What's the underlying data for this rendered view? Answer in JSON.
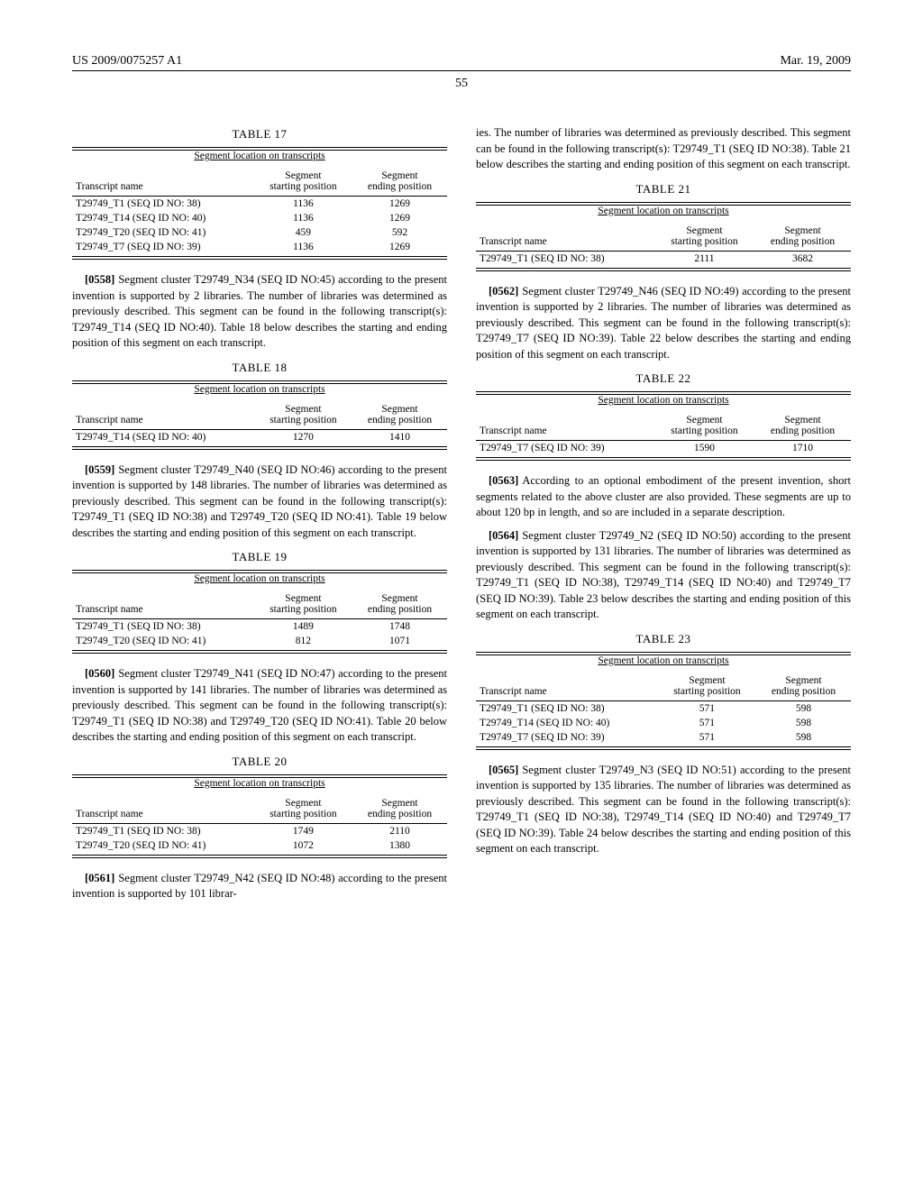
{
  "header": {
    "docnum": "US 2009/0075257 A1",
    "date": "Mar. 19, 2009"
  },
  "page_number": "55",
  "left": {
    "table17": {
      "title": "TABLE 17",
      "subtitle": "Segment location on transcripts",
      "col1": "Transcript name",
      "col2a": "Segment",
      "col2b": "starting position",
      "col3a": "Segment",
      "col3b": "ending position",
      "rows": [
        {
          "name": "T29749_T1 (SEQ ID NO: 38)",
          "start": "1136",
          "end": "1269"
        },
        {
          "name": "T29749_T14 (SEQ ID NO: 40)",
          "start": "1136",
          "end": "1269"
        },
        {
          "name": "T29749_T20 (SEQ ID NO: 41)",
          "start": "459",
          "end": "592"
        },
        {
          "name": "T29749_T7 (SEQ ID NO: 39)",
          "start": "1136",
          "end": "1269"
        }
      ]
    },
    "p0558": {
      "num": "[0558]",
      "text": "Segment cluster T29749_N34 (SEQ ID NO:45) according to the present invention is supported by 2 libraries. The number of libraries was determined as previously described. This segment can be found in the following transcript(s): T29749_T14 (SEQ ID NO:40). Table 18 below describes the starting and ending position of this segment on each transcript."
    },
    "table18": {
      "title": "TABLE 18",
      "subtitle": "Segment location on transcripts",
      "col1": "Transcript name",
      "col2a": "Segment",
      "col2b": "starting position",
      "col3a": "Segment",
      "col3b": "ending position",
      "rows": [
        {
          "name": "T29749_T14 (SEQ ID NO: 40)",
          "start": "1270",
          "end": "1410"
        }
      ]
    },
    "p0559": {
      "num": "[0559]",
      "text": "Segment cluster T29749_N40 (SEQ ID NO:46) according to the present invention is supported by 148 libraries. The number of libraries was determined as previously described. This segment can be found in the following transcript(s): T29749_T1 (SEQ ID NO:38) and T29749_T20 (SEQ ID NO:41). Table 19 below describes the starting and ending position of this segment on each transcript."
    },
    "table19": {
      "title": "TABLE 19",
      "subtitle": "Segment location on transcripts",
      "col1": "Transcript name",
      "col2a": "Segment",
      "col2b": "starting position",
      "col3a": "Segment",
      "col3b": "ending position",
      "rows": [
        {
          "name": "T29749_T1 (SEQ ID NO: 38)",
          "start": "1489",
          "end": "1748"
        },
        {
          "name": "T29749_T20 (SEQ ID NO: 41)",
          "start": "812",
          "end": "1071"
        }
      ]
    },
    "p0560": {
      "num": "[0560]",
      "text": "Segment cluster T29749_N41 (SEQ ID NO:47) according to the present invention is supported by 141 libraries. The number of libraries was determined as previously described. This segment can be found in the following transcript(s): T29749_T1 (SEQ ID NO:38) and T29749_T20 (SEQ ID NO:41). Table 20 below describes the starting and ending position of this segment on each transcript."
    },
    "table20": {
      "title": "TABLE 20",
      "subtitle": "Segment location on transcripts",
      "col1": "Transcript name",
      "col2a": "Segment",
      "col2b": "starting position",
      "col3a": "Segment",
      "col3b": "ending position",
      "rows": [
        {
          "name": "T29749_T1 (SEQ ID NO: 38)",
          "start": "1749",
          "end": "2110"
        },
        {
          "name": "T29749_T20 (SEQ ID NO: 41)",
          "start": "1072",
          "end": "1380"
        }
      ]
    },
    "p0561": {
      "num": "[0561]",
      "text": "Segment cluster T29749_N42 (SEQ ID NO:48) according to the present invention is supported by 101 librar-"
    }
  },
  "right": {
    "p_cont": {
      "text": "ies. The number of libraries was determined as previously described. This segment can be found in the following transcript(s): T29749_T1 (SEQ ID NO:38). Table 21 below describes the starting and ending position of this segment on each transcript."
    },
    "table21": {
      "title": "TABLE 21",
      "subtitle": "Segment location on transcripts",
      "col1": "Transcript name",
      "col2a": "Segment",
      "col2b": "starting position",
      "col3a": "Segment",
      "col3b": "ending position",
      "rows": [
        {
          "name": "T29749_T1 (SEQ ID NO: 38)",
          "start": "2111",
          "end": "3682"
        }
      ]
    },
    "p0562": {
      "num": "[0562]",
      "text": "Segment cluster T29749_N46 (SEQ ID NO:49) according to the present invention is supported by 2 libraries. The number of libraries was determined as previously described. This segment can be found in the following transcript(s): T29749_T7 (SEQ ID NO:39). Table 22 below describes the starting and ending position of this segment on each transcript."
    },
    "table22": {
      "title": "TABLE 22",
      "subtitle": "Segment location on transcripts",
      "col1": "Transcript name",
      "col2a": "Segment",
      "col2b": "starting position",
      "col3a": "Segment",
      "col3b": "ending position",
      "rows": [
        {
          "name": "T29749_T7 (SEQ ID NO: 39)",
          "start": "1590",
          "end": "1710"
        }
      ]
    },
    "p0563": {
      "num": "[0563]",
      "text": "According to an optional embodiment of the present invention, short segments related to the above cluster are also provided. These segments are up to about 120 bp in length, and so are included in a separate description."
    },
    "p0564": {
      "num": "[0564]",
      "text": "Segment cluster T29749_N2 (SEQ ID NO:50) according to the present invention is supported by 131 libraries. The number of libraries was determined as previously described. This segment can be found in the following transcript(s): T29749_T1 (SEQ ID NO:38), T29749_T14 (SEQ ID NO:40) and T29749_T7 (SEQ ID NO:39). Table 23 below describes the starting and ending position of this segment on each transcript."
    },
    "table23": {
      "title": "TABLE 23",
      "subtitle": "Segment location on transcripts",
      "col1": "Transcript name",
      "col2a": "Segment",
      "col2b": "starting position",
      "col3a": "Segment",
      "col3b": "ending position",
      "rows": [
        {
          "name": "T29749_T1 (SEQ ID NO: 38)",
          "start": "571",
          "end": "598"
        },
        {
          "name": "T29749_T14 (SEQ ID NO: 40)",
          "start": "571",
          "end": "598"
        },
        {
          "name": "T29749_T7 (SEQ ID NO: 39)",
          "start": "571",
          "end": "598"
        }
      ]
    },
    "p0565": {
      "num": "[0565]",
      "text": "Segment cluster T29749_N3 (SEQ ID NO:51) according to the present invention is supported by 135 libraries. The number of libraries was determined as previously described. This segment can be found in the following transcript(s): T29749_T1 (SEQ ID NO:38), T29749_T14 (SEQ ID NO:40) and T29749_T7 (SEQ ID NO:39). Table 24 below describes the starting and ending position of this segment on each transcript."
    }
  }
}
